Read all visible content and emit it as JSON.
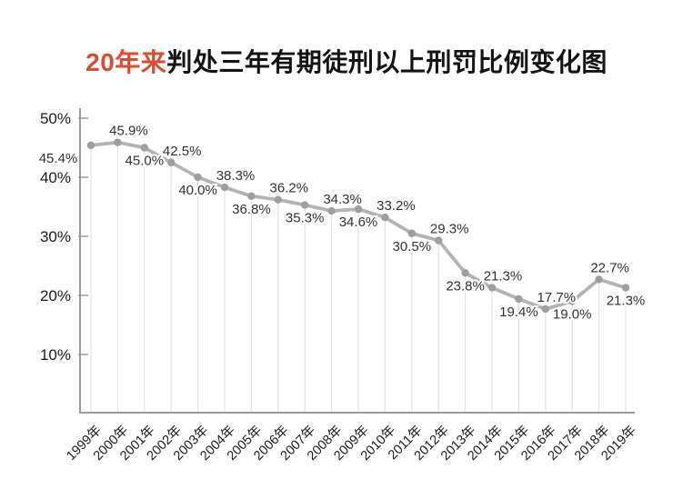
{
  "title": {
    "highlight": "20年来",
    "rest": "判处三年有期徒刑以上刑罚比例变化图"
  },
  "colors": {
    "background": "#ffffff",
    "title_accent": "#dc4a31",
    "title_text": "#141414",
    "line": "#b3b3b3",
    "marker": "#9e9e9e",
    "grid": "#e3e3e3",
    "axis": "#9a9a9a",
    "data_label": "#333333",
    "tick_label": "#1c1c1c"
  },
  "chart_data": {
    "type": "line",
    "title": "20年来判处三年有期徒刑以上刑罚比例变化图",
    "title_highlight": "20年来",
    "categories": [
      "1999年",
      "2000年",
      "2001年",
      "2002年",
      "2003年",
      "2004年",
      "2005年",
      "2006年",
      "2007年",
      "2008年",
      "2009年",
      "2010年",
      "2011年",
      "2012年",
      "2013年",
      "2014年",
      "2015年",
      "2016年",
      "2017年",
      "2018年",
      "2019年"
    ],
    "values": [
      45.4,
      45.9,
      45.0,
      42.5,
      40.0,
      38.3,
      36.8,
      36.2,
      35.3,
      34.3,
      34.6,
      33.2,
      30.5,
      29.3,
      23.8,
      21.3,
      19.4,
      17.7,
      19.0,
      22.7,
      21.3
    ],
    "point_labels": [
      "45.4%",
      "45.9%",
      "45.0%",
      "42.5%",
      "40.0%",
      "38.3%",
      "36.8%",
      "36.2%",
      "35.3%",
      "34.3%",
      "34.6%",
      "33.2%",
      "30.5%",
      "29.3%",
      "23.8%",
      "21.3%",
      "19.4%",
      "17.7%",
      "19.0%",
      "22.7%",
      "21.3%"
    ],
    "y_tick_values": [
      10,
      20,
      30,
      40,
      50
    ],
    "y_tick_labels": [
      "10%",
      "20%",
      "30%",
      "40%",
      "50%"
    ],
    "xlabel": "",
    "ylabel": "",
    "ylim": [
      0,
      50
    ],
    "grid": "vertical lines from each point down to x-axis",
    "legend": "none",
    "x_label_rotation": -45,
    "label_placement": "alternating: even index below point, odd index above point"
  }
}
